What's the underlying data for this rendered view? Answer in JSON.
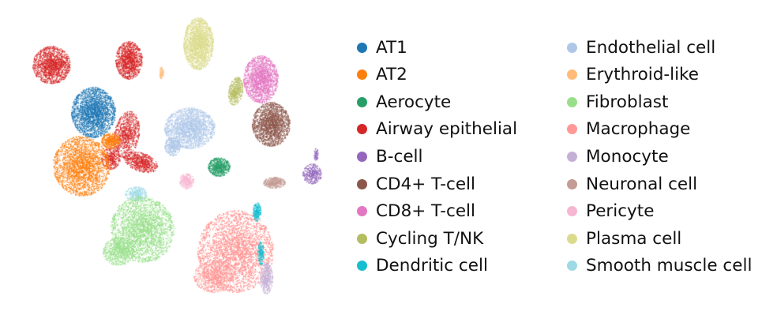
{
  "chart_data": {
    "type": "scatter",
    "title": "",
    "xlabel": "",
    "ylabel": "",
    "legend_position": "right",
    "legend_columns": 2,
    "grid": false,
    "axes_visible": false,
    "series": [
      {
        "name": "AT1",
        "color": "#1f77b4"
      },
      {
        "name": "AT2",
        "color": "#ff7f0e"
      },
      {
        "name": "Aerocyte",
        "color": "#279e68"
      },
      {
        "name": "Airway epithelial",
        "color": "#d62728"
      },
      {
        "name": "B-cell",
        "color": "#9467bd"
      },
      {
        "name": "CD4+ T-cell",
        "color": "#8c564b"
      },
      {
        "name": "CD8+ T-cell",
        "color": "#e377c2"
      },
      {
        "name": "Cycling T/NK",
        "color": "#b5bd61"
      },
      {
        "name": "Dendritic cell",
        "color": "#17becf"
      },
      {
        "name": "Endothelial cell",
        "color": "#aec7e8"
      },
      {
        "name": "Erythroid-like",
        "color": "#ffbb78"
      },
      {
        "name": "Fibroblast",
        "color": "#98df8a"
      },
      {
        "name": "Macrophage",
        "color": "#ff9896"
      },
      {
        "name": "Monocyte",
        "color": "#c5b0d5"
      },
      {
        "name": "Neuronal cell",
        "color": "#c49c94"
      },
      {
        "name": "Pericyte",
        "color": "#f7b6d2"
      },
      {
        "name": "Plasma cell",
        "color": "#dbdb8d"
      },
      {
        "name": "Smooth muscle cell",
        "color": "#9edae5"
      }
    ]
  }
}
